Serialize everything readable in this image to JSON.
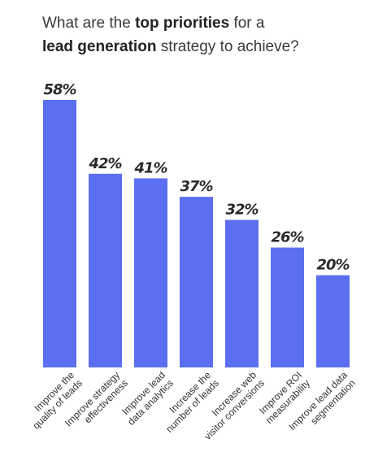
{
  "title": {
    "part1": "What are the ",
    "bold1": "top priorities",
    "part2": " for a",
    "bold2": "lead generation",
    "part3": " strategy to achieve?"
  },
  "chart_data": {
    "type": "bar",
    "categories": [
      [
        "Improve the",
        "quality of leads"
      ],
      [
        "Improve strategy",
        "effectiveness"
      ],
      [
        "Improve lead",
        "data analytics"
      ],
      [
        "Increase the",
        "number of leads"
      ],
      [
        "Increase web",
        "visitor conversions"
      ],
      [
        "Improve ROI",
        "measurability"
      ],
      [
        "Improve lead data",
        "segmentation"
      ]
    ],
    "values": [
      58,
      42,
      41,
      37,
      32,
      26,
      20
    ],
    "value_labels": [
      "58%",
      "42%",
      "41%",
      "37%",
      "32%",
      "26%",
      "20%"
    ],
    "ylim": [
      0,
      58
    ],
    "bar_color": "#5b6ff0"
  }
}
